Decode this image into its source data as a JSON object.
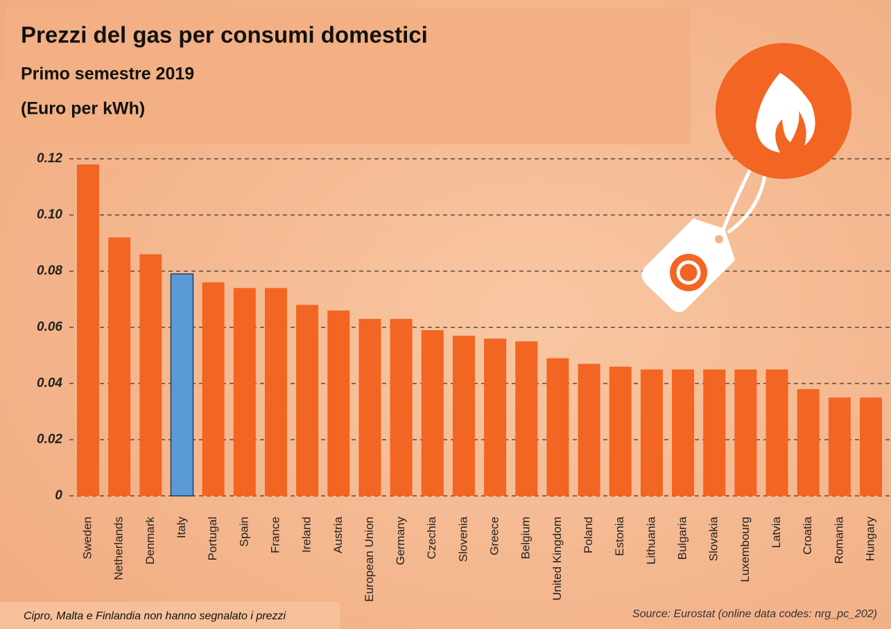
{
  "chart_data": {
    "type": "bar",
    "title": "Prezzi del gas per consumi domestici",
    "subtitle": "Primo semestre 2019",
    "unit": "(Euro per kWh)",
    "categories": [
      "Sweden",
      "Netherlands",
      "Denmark",
      "Italy",
      "Portugal",
      "Spain",
      "France",
      "Ireland",
      "Austria",
      "European Union",
      "Germany",
      "Czechia",
      "Slovenia",
      "Greece",
      "Belgium",
      "United Kingdom",
      "Poland",
      "Estonia",
      "Lithuania",
      "Bulgaria",
      "Slovakia",
      "Luxembourg",
      "Latvia",
      "Croatia",
      "Romania",
      "Hungary"
    ],
    "values": [
      0.118,
      0.092,
      0.086,
      0.079,
      0.076,
      0.074,
      0.074,
      0.068,
      0.066,
      0.063,
      0.063,
      0.059,
      0.057,
      0.056,
      0.055,
      0.049,
      0.047,
      0.046,
      0.045,
      0.045,
      0.045,
      0.045,
      0.045,
      0.038,
      0.035,
      0.035
    ],
    "colors": [
      "#f26522",
      "#f26522",
      "#f26522",
      "#5b9bd5",
      "#f26522",
      "#f26522",
      "#f26522",
      "#f26522",
      "#f26522",
      "#f26522",
      "#f26522",
      "#f26522",
      "#f26522",
      "#f26522",
      "#f26522",
      "#f26522",
      "#f26522",
      "#f26522",
      "#f26522",
      "#f26522",
      "#f26522",
      "#f26522",
      "#f26522",
      "#f26522",
      "#f26522",
      "#f26522"
    ],
    "ylim": [
      0,
      0.12
    ],
    "yticks": [
      0,
      0.02,
      0.04,
      0.06,
      0.08,
      {
        "value": 0.1,
        "label": "0.10"
      },
      0.12
    ],
    "grid": true,
    "footnote": "Cipro, Malta e Finlandia non hanno segnalato i prezzi",
    "source": "Source: Eurostat (online data codes: nrg_pc_202)"
  }
}
